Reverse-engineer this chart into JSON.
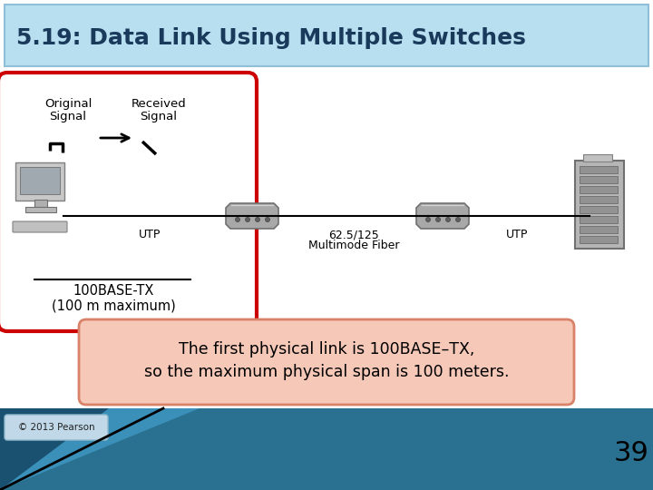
{
  "title": "5.19: Data Link Using Multiple Switches",
  "title_bg_top": "#c8e8f4",
  "title_bg_bot": "#8ac4de",
  "title_color": "#1a3a5c",
  "title_fontsize": 18,
  "bg_color": "#ffffff",
  "caption_text_line1": "The first physical link is 100BASE–TX,",
  "caption_text_line2": "so the maximum physical span is 100 meters.",
  "caption_bg": "#f5c8b8",
  "caption_border": "#d9826a",
  "red_box_color": "#cc0000",
  "label_orig1": "Original",
  "label_orig2": "Signal",
  "label_recv1": "Received",
  "label_recv2": "Signal",
  "utp_label1": "UTP",
  "utp_label2": "UTP",
  "fiber_label1": "62.5/125",
  "fiber_label2": "Multimode Fiber",
  "base_tx_label1": "100BASE-TX",
  "base_tx_label2": "(100 m maximum)",
  "copyright": "© 2013 Pearson",
  "page_num": "39",
  "footer_color1": "#2a6080",
  "footer_color2": "#5aaad0",
  "footer_color3": "#000000"
}
